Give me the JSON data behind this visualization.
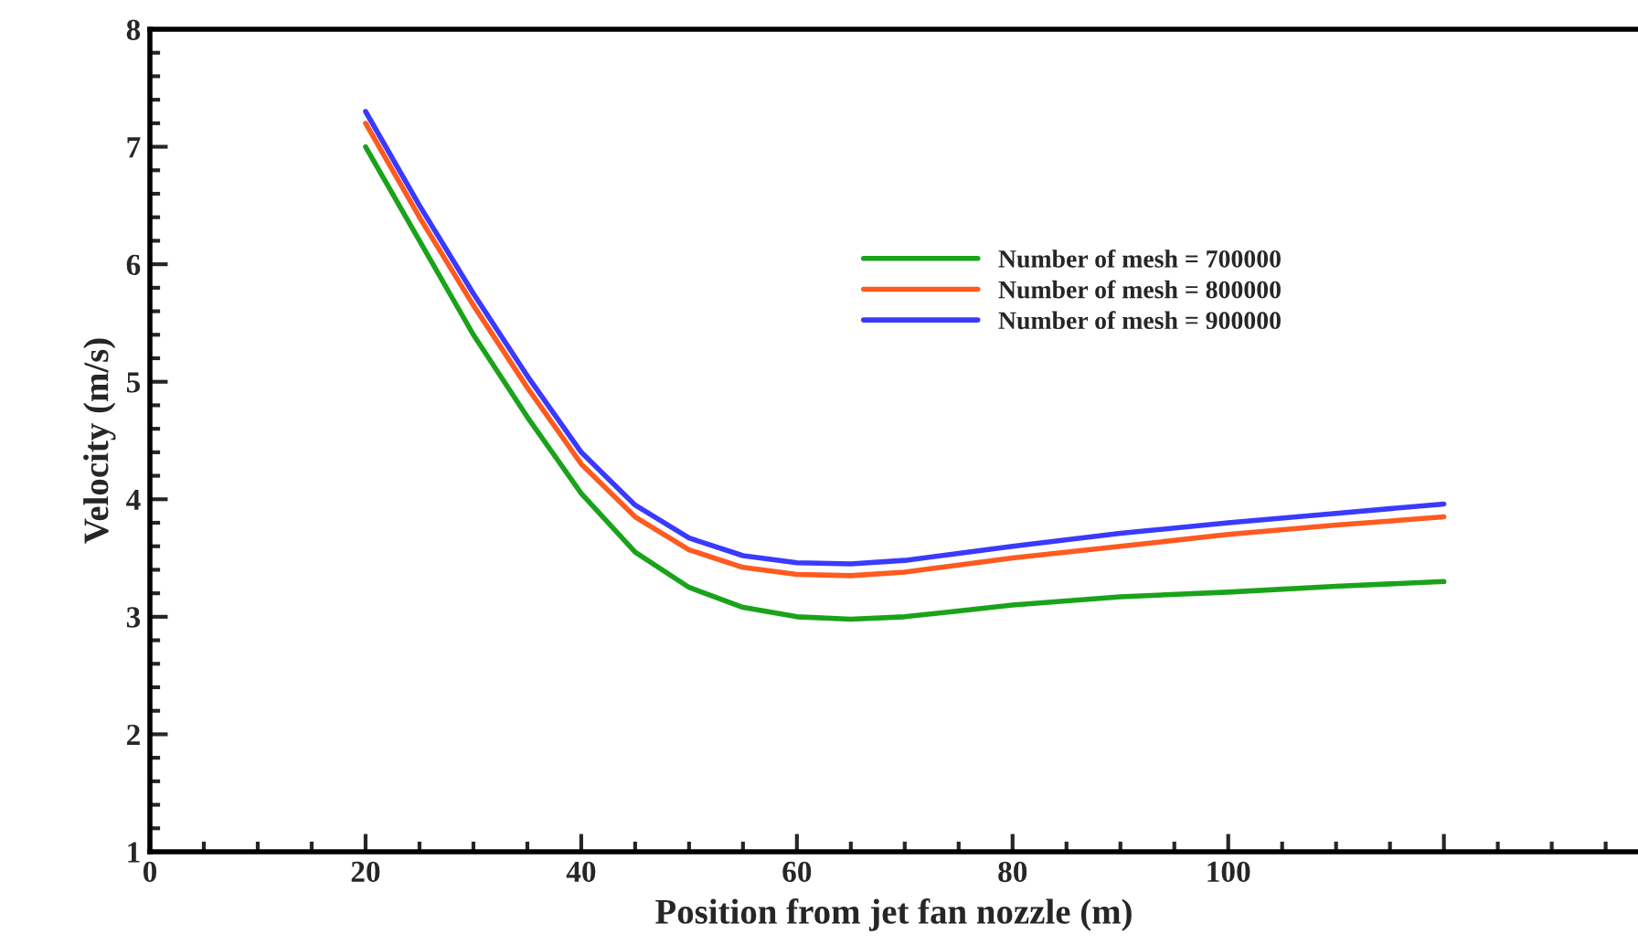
{
  "chart_data": {
    "type": "line",
    "xlabel": "Position from jet fan nozzle (m)",
    "ylabel": "Velocity (m/s)",
    "x": [
      20,
      25,
      30,
      35,
      40,
      45,
      50,
      55,
      60,
      65,
      70,
      75,
      80,
      90,
      100,
      110,
      120
    ],
    "series": [
      {
        "name": "Number of mesh = 700000",
        "color": "#1aa31a",
        "values": [
          7.0,
          6.2,
          5.4,
          4.7,
          4.05,
          3.55,
          3.25,
          3.08,
          3.0,
          2.98,
          3.0,
          3.05,
          3.1,
          3.17,
          3.21,
          3.26,
          3.3
        ]
      },
      {
        "name": "Number of mesh = 800000",
        "color": "#ff5a1f",
        "values": [
          7.2,
          6.4,
          5.65,
          4.95,
          4.3,
          3.85,
          3.57,
          3.42,
          3.36,
          3.35,
          3.38,
          3.44,
          3.5,
          3.6,
          3.7,
          3.78,
          3.85
        ]
      },
      {
        "name": "Number of mesh = 900000",
        "color": "#3a3aff",
        "values": [
          7.3,
          6.5,
          5.75,
          5.05,
          4.4,
          3.95,
          3.67,
          3.52,
          3.46,
          3.45,
          3.48,
          3.54,
          3.6,
          3.71,
          3.8,
          3.88,
          3.96
        ]
      }
    ],
    "xlim": [
      0,
      138
    ],
    "xticks": [
      0,
      20,
      40,
      60,
      80,
      100,
      {
        "value": 120,
        "label": null
      }
    ],
    "ylim": [
      1,
      8
    ],
    "yticks": [
      1,
      2,
      3,
      4,
      5,
      6,
      7,
      8
    ],
    "grid": false,
    "legend": "top",
    "line_style": "solid",
    "marker": "none"
  }
}
